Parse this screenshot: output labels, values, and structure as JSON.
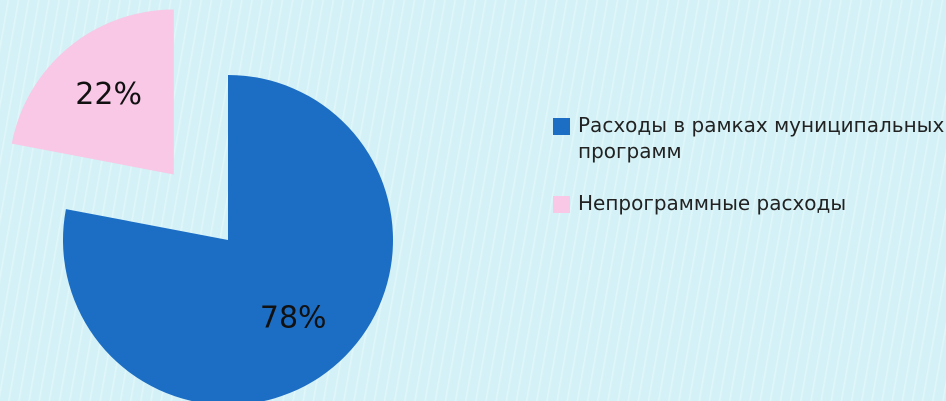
{
  "chart_data": {
    "type": "pie",
    "categories": [
      "Расходы в рамках муниципальных программ",
      "Непрограммные расходы"
    ],
    "values": [
      78,
      22
    ],
    "value_labels": [
      "78%",
      "22%"
    ],
    "colors": [
      "#1c6dc4",
      "#f8c8e6"
    ],
    "legend": "right"
  }
}
